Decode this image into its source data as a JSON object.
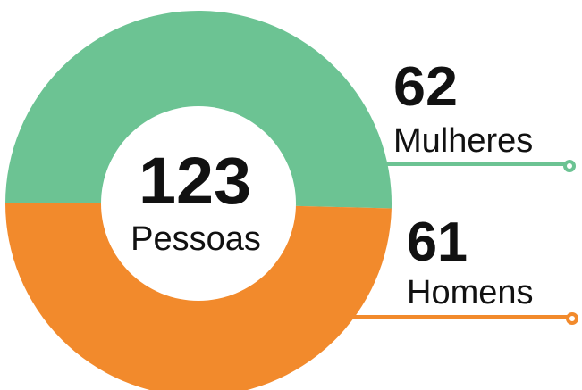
{
  "chart_data": {
    "type": "donut",
    "categories": [
      "Mulheres",
      "Homens"
    ],
    "values": [
      62,
      61
    ],
    "colors": [
      "#6cc393",
      "#f28a2c"
    ],
    "center_value": 123,
    "center_label": "Pessoas"
  }
}
